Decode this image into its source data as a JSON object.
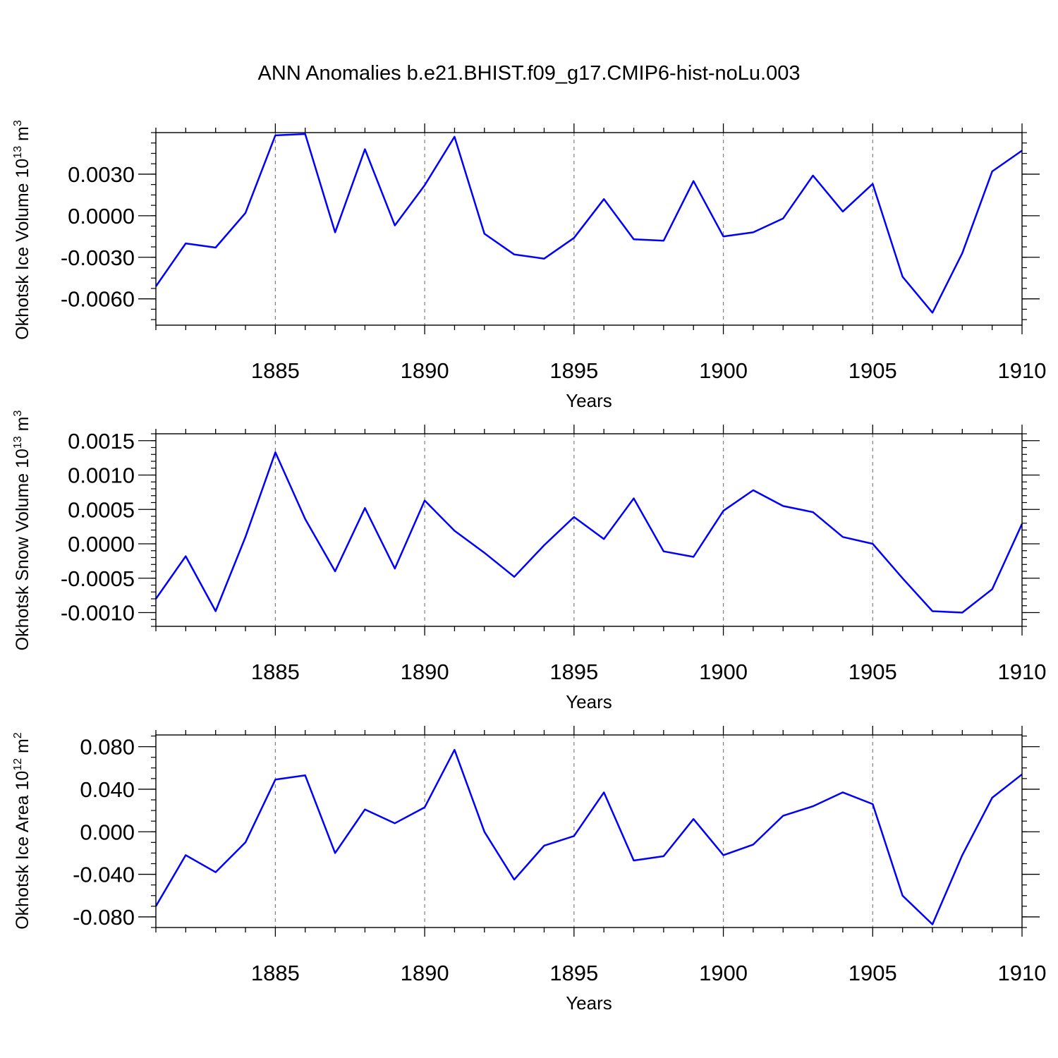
{
  "figure_title": "ANN Anomalies b.e21.BHIST.f09_g17.CMIP6-hist-noLu.003",
  "colors": {
    "line": "#0000ff",
    "axis": "#000000",
    "grid": "#808080"
  },
  "chart_data": [
    {
      "type": "line",
      "title": "ANN Anomalies b.e21.BHIST.f09_g17.CMIP6-hist-noLu.003",
      "ylabel": {
        "text": "Okhotsk Ice Volume 10",
        "exponent": "13",
        "unit": "m",
        "unit_exponent": "3"
      },
      "xlabel": "Years",
      "xlim": [
        1881,
        1910
      ],
      "ylim": [
        -0.0079,
        0.006
      ],
      "xticks": [
        1885,
        1890,
        1895,
        1900,
        1905,
        1910
      ],
      "xtick_labels": [
        "1885",
        "1890",
        "1895",
        "1900",
        "1905",
        "1910"
      ],
      "yticks": [
        0.003,
        0.0,
        -0.003,
        -0.006
      ],
      "ytick_labels": [
        "0.0030",
        "0.0000",
        "-0.0030",
        "-0.0060"
      ],
      "ytick_minor_step": 0.00075,
      "grid": "vertical dashed at major x ticks",
      "series": [
        {
          "name": "Okhotsk Ice Volume",
          "x": [
            1881,
            1882,
            1883,
            1884,
            1885,
            1886,
            1887,
            1888,
            1889,
            1890,
            1891,
            1892,
            1893,
            1894,
            1895,
            1896,
            1897,
            1898,
            1899,
            1900,
            1901,
            1902,
            1903,
            1904,
            1905,
            1906,
            1907,
            1908,
            1909,
            1910
          ],
          "values": [
            -0.0051,
            -0.002,
            -0.0023,
            0.0002,
            0.0058,
            0.0059,
            -0.0012,
            0.0048,
            -0.0007,
            0.0022,
            0.0057,
            -0.0013,
            -0.0028,
            -0.0031,
            -0.0016,
            0.0012,
            -0.0017,
            -0.0018,
            0.0025,
            -0.0015,
            -0.0012,
            -0.0002,
            0.0029,
            0.0003,
            0.0023,
            -0.0044,
            -0.007,
            -0.0027,
            0.0032,
            0.0047
          ]
        }
      ]
    },
    {
      "type": "line",
      "ylabel": {
        "text": "Okhotsk Snow Volume 10",
        "exponent": "13",
        "unit": "m",
        "unit_exponent": "3"
      },
      "xlabel": "Years",
      "xlim": [
        1881,
        1910
      ],
      "ylim": [
        -0.0012,
        0.0016
      ],
      "xticks": [
        1885,
        1890,
        1895,
        1900,
        1905,
        1910
      ],
      "xtick_labels": [
        "1885",
        "1890",
        "1895",
        "1900",
        "1905",
        "1910"
      ],
      "yticks": [
        0.0015,
        0.001,
        0.0005,
        0.0,
        -0.0005,
        -0.001
      ],
      "ytick_labels": [
        "0.0015",
        "0.0010",
        "0.0005",
        "0.0000",
        "-0.0005",
        "-0.0010"
      ],
      "ytick_minor_step": 0.0001,
      "grid": "vertical dashed at major x ticks",
      "series": [
        {
          "name": "Okhotsk Snow Volume",
          "x": [
            1881,
            1882,
            1883,
            1884,
            1885,
            1886,
            1887,
            1888,
            1889,
            1890,
            1891,
            1892,
            1893,
            1894,
            1895,
            1896,
            1897,
            1898,
            1899,
            1900,
            1901,
            1902,
            1903,
            1904,
            1905,
            1906,
            1907,
            1908,
            1909,
            1910
          ],
          "values": [
            -0.0008,
            -0.00018,
            -0.00098,
            0.0001,
            0.00133,
            0.00036,
            -0.0004,
            0.00052,
            -0.00036,
            0.00063,
            0.00019,
            -0.00013,
            -0.00048,
            -2e-05,
            0.00039,
            7e-05,
            0.00066,
            -0.00011,
            -0.00019,
            0.00048,
            0.00078,
            0.00055,
            0.00046,
            0.0001,
            0.0,
            -0.0005,
            -0.00098,
            -0.001,
            -0.00066,
            0.00029
          ]
        }
      ]
    },
    {
      "type": "line",
      "ylabel": {
        "text": "Okhotsk Ice Area 10",
        "exponent": "12",
        "unit": "m",
        "unit_exponent": "2"
      },
      "xlabel": "Years",
      "xlim": [
        1881,
        1910
      ],
      "ylim": [
        -0.09,
        0.091
      ],
      "xticks": [
        1885,
        1890,
        1895,
        1900,
        1905,
        1910
      ],
      "xtick_labels": [
        "1885",
        "1890",
        "1895",
        "1900",
        "1905",
        "1910"
      ],
      "yticks": [
        0.08,
        0.04,
        0.0,
        -0.04,
        -0.08
      ],
      "ytick_labels": [
        "0.080",
        "0.040",
        "0.000",
        "-0.040",
        "-0.080"
      ],
      "ytick_minor_step": 0.01,
      "grid": "vertical dashed at major x ticks",
      "series": [
        {
          "name": "Okhotsk Ice Area",
          "x": [
            1881,
            1882,
            1883,
            1884,
            1885,
            1886,
            1887,
            1888,
            1889,
            1890,
            1891,
            1892,
            1893,
            1894,
            1895,
            1896,
            1897,
            1898,
            1899,
            1900,
            1901,
            1902,
            1903,
            1904,
            1905,
            1906,
            1907,
            1908,
            1909,
            1910
          ],
          "values": [
            -0.07,
            -0.022,
            -0.038,
            -0.01,
            0.049,
            0.053,
            -0.02,
            0.021,
            0.008,
            0.023,
            0.077,
            0.0,
            -0.045,
            -0.013,
            -0.004,
            0.037,
            -0.027,
            -0.023,
            0.012,
            -0.022,
            -0.012,
            0.015,
            0.024,
            0.037,
            0.026,
            -0.06,
            -0.087,
            -0.022,
            0.032,
            0.054
          ]
        }
      ]
    }
  ]
}
